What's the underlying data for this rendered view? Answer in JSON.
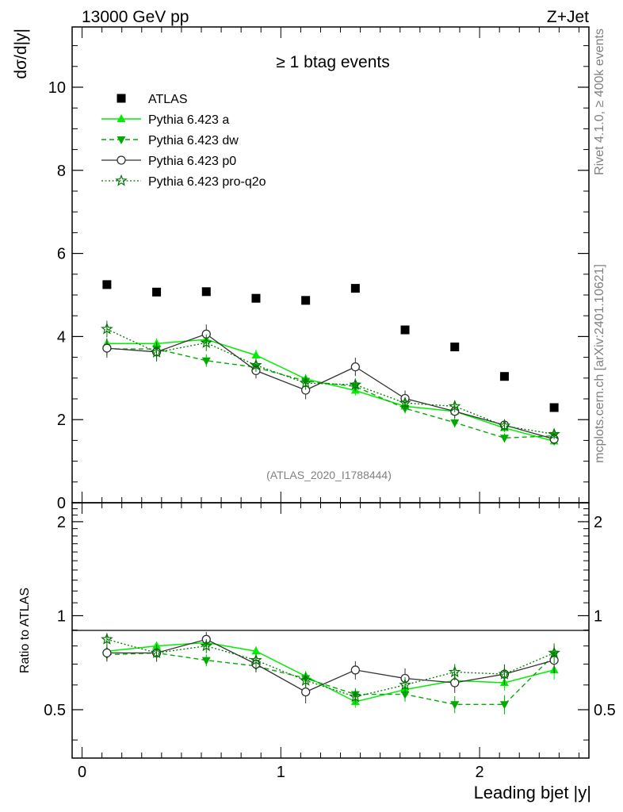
{
  "header": {
    "energy": "13000 GeV pp",
    "process": "Z+Jet"
  },
  "side_texts": {
    "rivet": "Rivet 4.1.0, ≥ 400k events",
    "mcplots": "mcplots.cern.ch [arXiv:2401.10621]"
  },
  "colors": {
    "atlas": "#000000",
    "a": "#00ee00",
    "dw": "#00aa00",
    "p0": "#333333",
    "pro_q2o": "#007700",
    "ref_gray": "#999999"
  },
  "chart_data": [
    {
      "type": "scatter",
      "panel": "main",
      "title": "≥ 1 btag events",
      "analysis_id": "(ATLAS_2020_I1788444)",
      "xlabel": "Leading bjet |y|",
      "ylabel": "dσ/d|y|",
      "xlim": [
        -0.05,
        2.55
      ],
      "ylim": [
        0,
        11.45
      ],
      "yticks": [
        0,
        2,
        4,
        6,
        8,
        10
      ],
      "ytick_labels": [
        "0",
        "2",
        "4",
        "6",
        "8",
        "10"
      ],
      "x": [
        0.125,
        0.375,
        0.625,
        0.875,
        1.125,
        1.375,
        1.625,
        1.875,
        2.125,
        2.375
      ],
      "series": [
        {
          "key": "atlas",
          "name": "ATLAS",
          "values": [
            5.25,
            5.07,
            5.08,
            4.92,
            4.87,
            5.16,
            4.16,
            3.75,
            3.04,
            2.29
          ]
        },
        {
          "key": "a",
          "name": "Pythia 6.423 a",
          "values": [
            3.83,
            3.83,
            3.93,
            3.55,
            2.98,
            2.7,
            2.32,
            2.2,
            1.8,
            1.48
          ],
          "errors": [
            0.13,
            0.13,
            0.13,
            0.13,
            0.12,
            0.12,
            0.12,
            0.12,
            0.1,
            0.1
          ]
        },
        {
          "key": "dw",
          "name": "Pythia 6.423 dw",
          "values": [
            3.7,
            3.7,
            3.42,
            3.26,
            2.93,
            2.8,
            2.27,
            1.93,
            1.56,
            1.61
          ],
          "errors": [
            0.15,
            0.15,
            0.15,
            0.14,
            0.14,
            0.13,
            0.12,
            0.12,
            0.11,
            0.11
          ]
        },
        {
          "key": "p0",
          "name": "Pythia 6.423 p0",
          "values": [
            3.72,
            3.63,
            4.06,
            3.18,
            2.71,
            3.27,
            2.51,
            2.2,
            1.87,
            1.53
          ],
          "errors": [
            0.23,
            0.23,
            0.23,
            0.19,
            0.22,
            0.22,
            0.19,
            0.16,
            0.14,
            0.14
          ]
        },
        {
          "key": "pro_q2o",
          "name": "Pythia 6.423 pro-q2o",
          "values": [
            4.18,
            3.62,
            3.85,
            3.31,
            2.88,
            2.84,
            2.4,
            2.32,
            1.85,
            1.65
          ],
          "errors": [
            0.2,
            0.2,
            0.2,
            0.16,
            0.16,
            0.15,
            0.14,
            0.14,
            0.12,
            0.12
          ]
        }
      ]
    },
    {
      "type": "scatter",
      "panel": "ratio",
      "ylabel": "Ratio to ATLAS",
      "xlabel": "Leading bjet |y|",
      "xlim": [
        -0.05,
        2.55
      ],
      "ylim": [
        0.35,
        2.3
      ],
      "yscale": "log",
      "yticks": [
        0.5,
        1,
        2
      ],
      "ytick_labels": [
        "0.5",
        "1",
        "2"
      ],
      "xticks": [
        0,
        1,
        2
      ],
      "xtick_labels": [
        "0",
        "1",
        "2"
      ],
      "x": [
        0.125,
        0.375,
        0.625,
        0.875,
        1.125,
        1.375,
        1.625,
        1.875,
        2.125,
        2.375
      ],
      "series": [
        {
          "key": "a",
          "name": "Pythia 6.423 a",
          "values": [
            0.77,
            0.8,
            0.82,
            0.77,
            0.64,
            0.53,
            0.58,
            0.62,
            0.61,
            0.67
          ]
        },
        {
          "key": "dw",
          "name": "Pythia 6.423 dw",
          "values": [
            0.75,
            0.76,
            0.72,
            0.69,
            0.63,
            0.56,
            0.56,
            0.52,
            0.52,
            0.75
          ]
        },
        {
          "key": "p0",
          "name": "Pythia 6.423 p0",
          "values": [
            0.76,
            0.76,
            0.84,
            0.7,
            0.57,
            0.67,
            0.63,
            0.61,
            0.65,
            0.72
          ]
        },
        {
          "key": "pro_q2o",
          "name": "Pythia 6.423 pro-q2o",
          "values": [
            0.84,
            0.76,
            0.8,
            0.72,
            0.62,
            0.55,
            0.6,
            0.66,
            0.65,
            0.76
          ]
        }
      ]
    }
  ]
}
